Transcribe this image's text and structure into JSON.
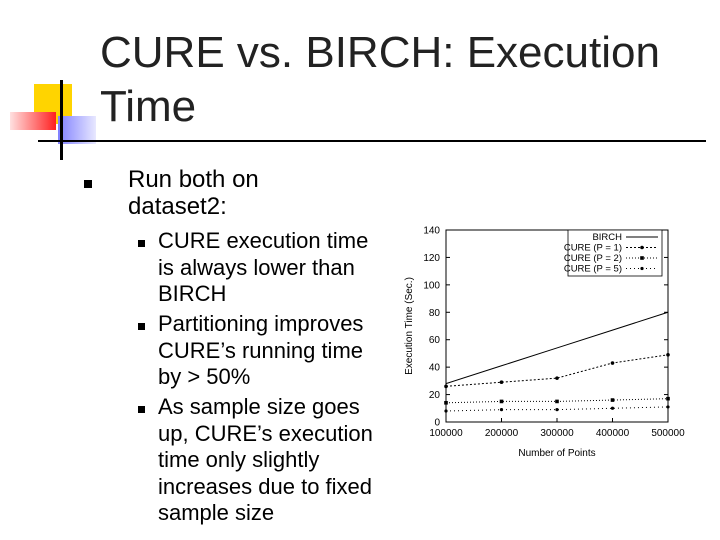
{
  "slide": {
    "title": "CURE vs. BIRCH: Execution Time",
    "bullet_main": "Run both on dataset2:",
    "sub_bullets": [
      "CURE execution time is always lower than BIRCH",
      "Partitioning improves CURE’s running time by > 50%",
      "As sample size goes up, CURE’s execution time only slightly increases due to fixed sample size"
    ]
  },
  "colors": {
    "title": "#222222",
    "accent_yellow": "#ffd400",
    "accent_red": "#ff2020",
    "accent_blue": "#8080ff"
  },
  "chart_data": {
    "type": "line",
    "xlabel": "Number of Points",
    "ylabel": "Execution Time (Sec.)",
    "x": [
      100000,
      200000,
      300000,
      400000,
      500000
    ],
    "x_tick_labels": [
      "100000",
      "200000",
      "300000",
      "400000",
      "500000"
    ],
    "xlim": [
      100000,
      500000
    ],
    "ylim": [
      0,
      140
    ],
    "y_ticks": [
      0,
      20,
      40,
      60,
      80,
      100,
      120,
      140
    ],
    "legend_position": "top-right",
    "series": [
      {
        "name": "BIRCH",
        "values": [
          28,
          41,
          54,
          67,
          80
        ]
      },
      {
        "name": "CURE (P = 1)",
        "values": [
          26,
          29,
          32,
          43,
          49
        ]
      },
      {
        "name": "CURE (P = 2)",
        "values": [
          14,
          15,
          15,
          16,
          17
        ]
      },
      {
        "name": "CURE (P = 5)",
        "values": [
          8,
          9,
          9,
          10,
          11
        ]
      }
    ]
  }
}
